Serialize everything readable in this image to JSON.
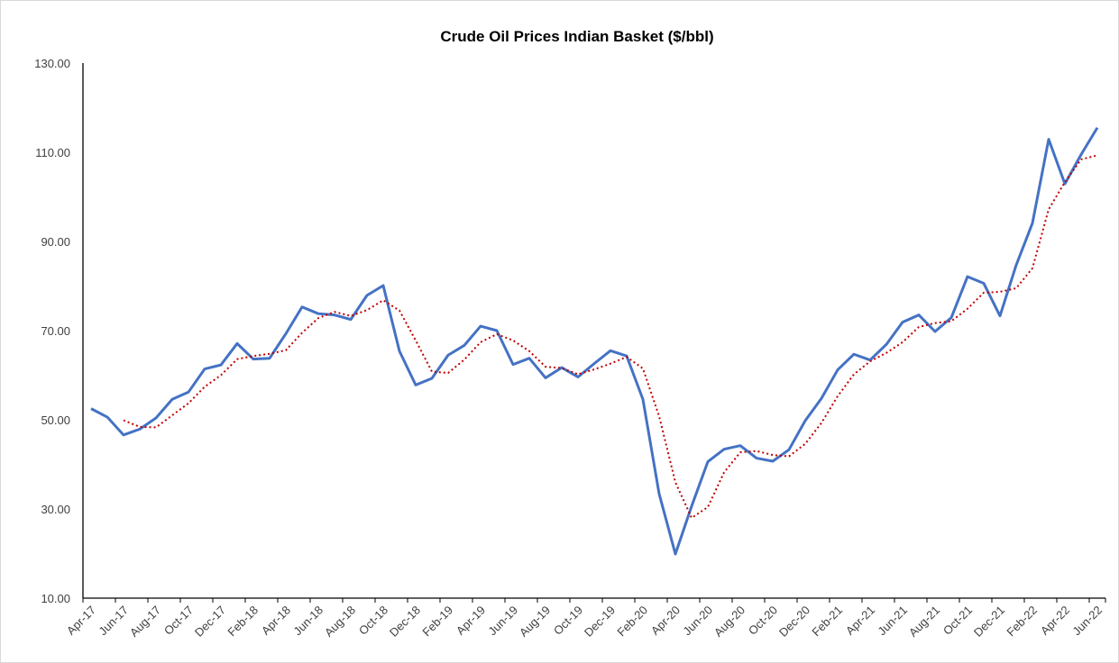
{
  "chart_data": {
    "type": "line",
    "title": "Crude Oil Prices Indian Basket ($/bbl)",
    "categories": [
      "Apr-17",
      null,
      "Jun-17",
      null,
      "Aug-17",
      null,
      "Oct-17",
      null,
      "Dec-17",
      null,
      "Feb-18",
      null,
      "Apr-18",
      null,
      "Jun-18",
      null,
      "Aug-18",
      null,
      "Oct-18",
      null,
      "Dec-18",
      null,
      "Feb-19",
      null,
      "Apr-19",
      null,
      "Jun-19",
      null,
      "Aug-19",
      null,
      "Oct-19",
      null,
      "Dec-19",
      null,
      "Feb-20",
      null,
      "Apr-20",
      null,
      "Jun-20",
      null,
      "Aug-20",
      null,
      "Oct-20",
      null,
      "Dec-20",
      null,
      "Feb-21",
      null,
      "Apr-21",
      null,
      "Jun-21",
      null,
      "Aug-21",
      null,
      "Oct-21",
      null,
      "Dec-21",
      null,
      "Feb-22",
      null,
      "Apr-22",
      null,
      "Jun-22"
    ],
    "series": [
      {
        "color": "#4472c4",
        "values": [
          52.5,
          50.6,
          46.6,
          47.9,
          50.4,
          54.6,
          56.2,
          61.4,
          62.3,
          67.1,
          63.6,
          63.8,
          69.3,
          75.3,
          73.8,
          73.5,
          72.5,
          77.9,
          80.1,
          65.4,
          57.8,
          59.3,
          64.5,
          66.7,
          71.0,
          70.0,
          62.4,
          63.8,
          59.4,
          61.7,
          59.6,
          62.6,
          65.5,
          64.3,
          54.6,
          33.4,
          19.9,
          30.6,
          40.6,
          43.4,
          44.2,
          41.4,
          40.7,
          43.3,
          49.8,
          54.8,
          61.2,
          64.7,
          63.4,
          66.9,
          71.9,
          73.5,
          69.8,
          72.9,
          82.1,
          80.6,
          73.3,
          84.7,
          94.1,
          112.9,
          102.9,
          109.5,
          115.5
        ]
      },
      {
        "color": "#c00000",
        "dash": "dotted",
        "values": [
          null,
          null,
          49.9,
          48.4,
          48.3,
          51.0,
          53.7,
          57.4,
          60.0,
          63.6,
          64.3,
          64.8,
          65.6,
          69.5,
          72.8,
          74.2,
          73.3,
          74.6,
          76.8,
          74.5,
          67.8,
          60.8,
          60.5,
          63.5,
          67.4,
          69.2,
          67.8,
          65.4,
          61.9,
          61.6,
          60.2,
          61.3,
          62.6,
          64.1,
          61.5,
          50.8,
          36.0,
          28.0,
          30.4,
          38.2,
          42.7,
          43.0,
          42.1,
          41.8,
          44.6,
          49.3,
          55.3,
          60.2,
          63.1,
          65.0,
          67.4,
          70.8,
          71.7,
          72.1,
          74.9,
          78.5,
          78.7,
          79.5,
          84.0,
          97.2,
          103.3,
          108.4,
          109.3
        ]
      }
    ],
    "ylim": [
      10,
      130
    ],
    "yticks": [
      {
        "value": 10,
        "label": "10.00"
      },
      {
        "value": 30,
        "label": "30.00"
      },
      {
        "value": 50,
        "label": "50.00"
      },
      {
        "value": 70,
        "label": "70.00"
      },
      {
        "value": 90,
        "label": "90.00"
      },
      {
        "value": 110,
        "label": "110.00"
      },
      {
        "value": 130,
        "label": "130.00"
      }
    ],
    "grid": false
  }
}
